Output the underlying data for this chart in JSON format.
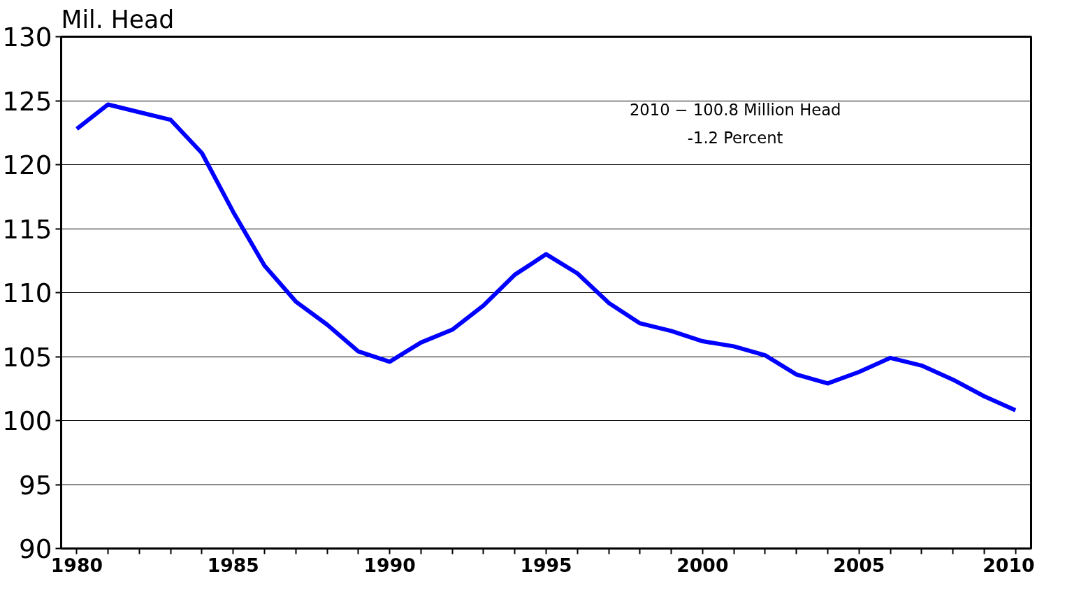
{
  "chart_data": {
    "type": "line",
    "ylabel": "Mil. Head",
    "annotations": [
      "2010 − 100.8 Million Head",
      "-1.2 Percent"
    ],
    "x": [
      1980,
      1981,
      1982,
      1983,
      1984,
      1985,
      1986,
      1987,
      1988,
      1989,
      1990,
      1991,
      1992,
      1993,
      1994,
      1995,
      1996,
      1997,
      1998,
      1999,
      2000,
      2001,
      2002,
      2003,
      2004,
      2005,
      2006,
      2007,
      2008,
      2009,
      2010
    ],
    "series": [
      {
        "color": "#0000ff",
        "values": [
          122.8,
          124.7,
          124.1,
          123.5,
          120.9,
          116.3,
          112.1,
          109.3,
          107.5,
          105.4,
          104.6,
          106.1,
          107.1,
          109.0,
          111.4,
          113.0,
          111.5,
          109.2,
          107.6,
          107.0,
          106.2,
          105.8,
          105.1,
          103.6,
          102.9,
          103.8,
          104.9,
          104.3,
          103.2,
          101.9,
          100.8
        ]
      }
    ],
    "xlim": [
      1979.5,
      2010.5
    ],
    "xticks": [
      1980,
      {
        "value": 1981,
        "label": null
      },
      {
        "value": 1982,
        "label": null
      },
      {
        "value": 1983,
        "label": null
      },
      {
        "value": 1984,
        "label": null
      },
      1985,
      {
        "value": 1986,
        "label": null
      },
      {
        "value": 1987,
        "label": null
      },
      {
        "value": 1988,
        "label": null
      },
      {
        "value": 1989,
        "label": null
      },
      1990,
      {
        "value": 1991,
        "label": null
      },
      {
        "value": 1992,
        "label": null
      },
      {
        "value": 1993,
        "label": null
      },
      {
        "value": 1994,
        "label": null
      },
      1995,
      {
        "value": 1996,
        "label": null
      },
      {
        "value": 1997,
        "label": null
      },
      {
        "value": 1998,
        "label": null
      },
      {
        "value": 1999,
        "label": null
      },
      2000,
      {
        "value": 2001,
        "label": null
      },
      {
        "value": 2002,
        "label": null
      },
      {
        "value": 2003,
        "label": null
      },
      {
        "value": 2004,
        "label": null
      },
      2005,
      {
        "value": 2006,
        "label": null
      },
      {
        "value": 2007,
        "label": null
      },
      {
        "value": 2008,
        "label": null
      },
      {
        "value": 2009,
        "label": null
      },
      2010
    ],
    "ylim": [
      90,
      130
    ],
    "yticks": [
      90,
      95,
      100,
      105,
      110,
      115,
      120,
      125,
      130
    ],
    "grid": "y",
    "marker": "none",
    "line_style": "solid"
  }
}
